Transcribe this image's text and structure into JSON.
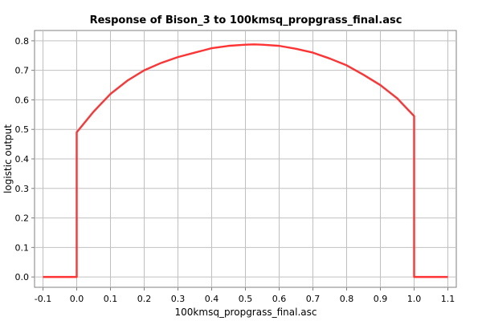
{
  "chart_data": {
    "type": "line",
    "title": "Response of Bison_3 to 100kmsq_propgrass_final.asc",
    "xlabel": "100kmsq_propgrass_final.asc",
    "ylabel": "logistic output",
    "xlim": [
      -0.125,
      1.125
    ],
    "ylim": [
      -0.035,
      0.835
    ],
    "x_ticks": [
      "-0.1",
      "0.0",
      "0.1",
      "0.2",
      "0.3",
      "0.4",
      "0.5",
      "0.6",
      "0.7",
      "0.8",
      "0.9",
      "1.0",
      "1.1"
    ],
    "y_ticks": [
      "0.0",
      "0.1",
      "0.2",
      "0.3",
      "0.4",
      "0.5",
      "0.6",
      "0.7",
      "0.8"
    ],
    "grid": true,
    "legend": "none",
    "line_color": "#ff3333",
    "series": [
      {
        "x": [
          -0.1,
          0.0,
          0.0,
          0.025,
          0.05,
          0.075,
          0.1,
          0.15,
          0.2,
          0.25,
          0.3,
          0.35,
          0.4,
          0.45,
          0.5,
          0.525,
          0.55,
          0.6,
          0.65,
          0.7,
          0.75,
          0.8,
          0.85,
          0.9,
          0.95,
          1.0,
          1.0,
          1.1
        ],
        "y": [
          0.0,
          0.0,
          0.49,
          0.525,
          0.56,
          0.59,
          0.62,
          0.665,
          0.7,
          0.725,
          0.745,
          0.76,
          0.775,
          0.783,
          0.787,
          0.788,
          0.787,
          0.783,
          0.773,
          0.76,
          0.74,
          0.717,
          0.685,
          0.65,
          0.605,
          0.545,
          0.0,
          0.0
        ]
      }
    ]
  }
}
